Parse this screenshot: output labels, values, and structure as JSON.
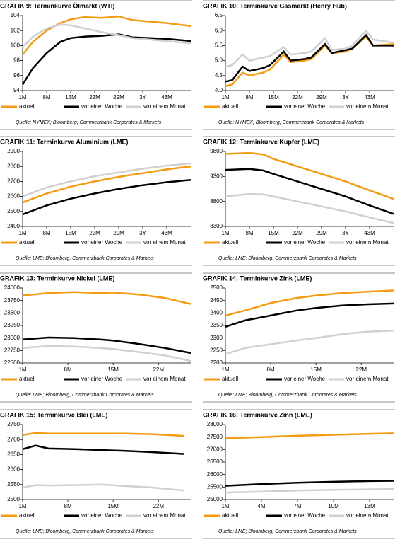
{
  "chart_data": [
    {
      "type": "line",
      "title": "GRAFIK 9: Terminkurve Ölmarkt (WTI)",
      "source": "Quelle: NYMEX; Bloomberg, Commerzbank Corporates & Markets",
      "x": [
        1,
        4,
        8,
        12,
        15,
        19,
        24,
        29,
        33,
        38,
        43,
        50
      ],
      "xlim": [
        1,
        50
      ],
      "xticks": [
        {
          "value": 1,
          "label": "1M"
        },
        {
          "value": 8,
          "label": "8M"
        },
        {
          "value": 15,
          "label": "15M"
        },
        {
          "value": 22,
          "label": "22M"
        },
        {
          "value": 29,
          "label": "29M"
        },
        {
          "value": 36,
          "label": "3Y"
        },
        {
          "value": 43,
          "label": "43M"
        }
      ],
      "ylim": [
        94,
        104
      ],
      "yticks": [
        94,
        96,
        98,
        100,
        102,
        104
      ],
      "series": [
        {
          "name": "aktuell",
          "color": "#f39c12",
          "values": [
            98.8,
            100.5,
            102,
            103,
            103.5,
            103.8,
            103.7,
            103.9,
            103.4,
            103.2,
            103,
            102.6
          ]
        },
        {
          "name": "vor einer Woche",
          "color": "#000000",
          "values": [
            94.8,
            97,
            99,
            100.5,
            101,
            101.2,
            101.3,
            101.5,
            101.1,
            101,
            100.9,
            100.6
          ]
        },
        {
          "name": "vor einem Monat",
          "color": "#d0d0d0",
          "values": [
            99.8,
            101.2,
            102.3,
            102.8,
            102.7,
            102.3,
            101.8,
            101.4,
            101,
            100.8,
            100.6,
            100.3
          ]
        }
      ]
    },
    {
      "type": "line",
      "title": "GRAFIK 10: Terminkurve Gasmarkt (Henry Hub)",
      "source": "Quelle: NYMEX; Bloomberg, Commerzbank Corporates & Markets",
      "x": [
        1,
        3,
        6,
        8,
        10,
        12,
        14,
        18,
        20,
        24,
        26,
        30,
        32,
        36,
        38,
        42,
        44,
        50
      ],
      "xlim": [
        1,
        50
      ],
      "xticks": [
        {
          "value": 1,
          "label": "1M"
        },
        {
          "value": 8,
          "label": "8M"
        },
        {
          "value": 15,
          "label": "15M"
        },
        {
          "value": 22,
          "label": "22M"
        },
        {
          "value": 29,
          "label": "29M"
        },
        {
          "value": 36,
          "label": "3Y"
        },
        {
          "value": 43,
          "label": "43M"
        }
      ],
      "ylim": [
        4,
        6.5
      ],
      "yticks": [
        {
          "value": 4,
          "label": "4.0"
        },
        4.5,
        {
          "value": 5,
          "label": "5.0"
        },
        5.5,
        {
          "value": 6,
          "label": "6.0"
        },
        6.5
      ],
      "series": [
        {
          "name": "aktuell",
          "color": "#f39c12",
          "values": [
            4.15,
            4.2,
            4.6,
            4.5,
            4.55,
            4.6,
            4.7,
            5.2,
            4.95,
            5.0,
            5.05,
            5.5,
            5.25,
            5.3,
            5.4,
            5.8,
            5.5,
            5.55
          ]
        },
        {
          "name": "vor einer Woche",
          "color": "#000000",
          "values": [
            4.3,
            4.35,
            4.8,
            4.65,
            4.7,
            4.75,
            4.85,
            5.3,
            5.0,
            5.05,
            5.1,
            5.55,
            5.25,
            5.35,
            5.4,
            5.85,
            5.5,
            5.5
          ]
        },
        {
          "name": "vor einem Monat",
          "color": "#d0d0d0",
          "values": [
            4.8,
            4.85,
            5.2,
            5.0,
            5.05,
            5.1,
            5.15,
            5.45,
            5.2,
            5.25,
            5.3,
            5.75,
            5.35,
            5.4,
            5.5,
            6.0,
            5.7,
            5.6
          ]
        }
      ]
    },
    {
      "type": "line",
      "title": "GRAFIK 11: Terminkurve Aluminium (LME)",
      "source": "Quelle: LME; Bloomberg, Commerzbank Corporates & Markets",
      "x": [
        1,
        8,
        15,
        22,
        29,
        36,
        43,
        50
      ],
      "xlim": [
        1,
        50
      ],
      "xticks": [
        {
          "value": 1,
          "label": "1M"
        },
        {
          "value": 8,
          "label": "8M"
        },
        {
          "value": 15,
          "label": "15M"
        },
        {
          "value": 22,
          "label": "22M"
        },
        {
          "value": 29,
          "label": "29M"
        },
        {
          "value": 36,
          "label": "3Y"
        },
        {
          "value": 43,
          "label": "43M"
        }
      ],
      "ylim": [
        2400,
        2900
      ],
      "yticks": [
        2400,
        2500,
        2600,
        2700,
        2800,
        2900
      ],
      "series": [
        {
          "name": "aktuell",
          "color": "#f39c12",
          "values": [
            2560,
            2620,
            2665,
            2700,
            2730,
            2755,
            2780,
            2800
          ]
        },
        {
          "name": "vor einer Woche",
          "color": "#000000",
          "values": [
            2480,
            2540,
            2585,
            2620,
            2650,
            2675,
            2695,
            2710
          ]
        },
        {
          "name": "vor einem Monat",
          "color": "#d0d0d0",
          "values": [
            2600,
            2660,
            2700,
            2735,
            2760,
            2785,
            2805,
            2820
          ]
        }
      ]
    },
    {
      "type": "line",
      "title": "GRAFIK 12: Terminkurve Kupfer (LME)",
      "source": "Quelle: LME; Bloomberg, Commerzbank Corporates & Markets",
      "x": [
        1,
        8,
        12,
        15,
        22,
        29,
        36,
        43,
        50
      ],
      "xlim": [
        1,
        50
      ],
      "xticks": [
        {
          "value": 1,
          "label": "1M"
        },
        {
          "value": 8,
          "label": "8M"
        },
        {
          "value": 15,
          "label": "15M"
        },
        {
          "value": 22,
          "label": "22M"
        },
        {
          "value": 29,
          "label": "29M"
        },
        {
          "value": 36,
          "label": "3Y"
        },
        {
          "value": 43,
          "label": "43M"
        }
      ],
      "ylim": [
        8300,
        9800
      ],
      "yticks": [
        8300,
        8800,
        9300,
        9800
      ],
      "series": [
        {
          "name": "aktuell",
          "color": "#f39c12",
          "values": [
            9750,
            9770,
            9740,
            9650,
            9500,
            9350,
            9200,
            9020,
            8850
          ]
        },
        {
          "name": "vor einer Woche",
          "color": "#000000",
          "values": [
            9430,
            9450,
            9420,
            9350,
            9200,
            9050,
            8900,
            8720,
            8550
          ]
        },
        {
          "name": "vor einem Monat",
          "color": "#d0d0d0",
          "values": [
            8900,
            8950,
            8940,
            8900,
            8800,
            8700,
            8600,
            8480,
            8370
          ]
        }
      ]
    },
    {
      "type": "line",
      "title": "GRAFIK 13: Terminkurve Nickel (LME)",
      "source": "Quelle: LME; Bloomberg, Commerzbank Corporates & Markets",
      "x": [
        1,
        5,
        9,
        13,
        15,
        19,
        23,
        27
      ],
      "xlim": [
        1,
        27
      ],
      "xticks": [
        {
          "value": 1,
          "label": "1M"
        },
        {
          "value": 8,
          "label": "8M"
        },
        {
          "value": 15,
          "label": "15M"
        },
        {
          "value": 22,
          "label": "22M"
        }
      ],
      "ylim": [
        22500,
        24000
      ],
      "yticks": [
        22500,
        22750,
        23000,
        23250,
        23500,
        23750,
        24000
      ],
      "series": [
        {
          "name": "aktuell",
          "color": "#f39c12",
          "values": [
            23850,
            23900,
            23920,
            23900,
            23910,
            23870,
            23800,
            23680
          ]
        },
        {
          "name": "vor einer Woche",
          "color": "#000000",
          "values": [
            22970,
            23010,
            23000,
            22970,
            22950,
            22880,
            22800,
            22700
          ]
        },
        {
          "name": "vor einem Monat",
          "color": "#d0d0d0",
          "values": [
            22800,
            22840,
            22830,
            22800,
            22780,
            22720,
            22650,
            22540
          ]
        }
      ]
    },
    {
      "type": "line",
      "title": "GRAFIK 14: Terminkurve Zink (LME)",
      "source": "Quelle: LME; Bloomberg, Commerzbank Corporates & Markets",
      "x": [
        1,
        4,
        8,
        12,
        15,
        19,
        23,
        27
      ],
      "xlim": [
        1,
        27
      ],
      "xticks": [
        {
          "value": 1,
          "label": "1M"
        },
        {
          "value": 8,
          "label": "8M"
        },
        {
          "value": 15,
          "label": "15M"
        },
        {
          "value": 22,
          "label": "22M"
        }
      ],
      "ylim": [
        2200,
        2500
      ],
      "yticks": [
        2200,
        2250,
        2300,
        2350,
        2400,
        2450,
        2500
      ],
      "series": [
        {
          "name": "aktuell",
          "color": "#f39c12",
          "values": [
            2390,
            2410,
            2440,
            2460,
            2470,
            2480,
            2485,
            2490
          ]
        },
        {
          "name": "vor einer Woche",
          "color": "#000000",
          "values": [
            2345,
            2370,
            2390,
            2410,
            2420,
            2430,
            2435,
            2438
          ]
        },
        {
          "name": "vor einem Monat",
          "color": "#d0d0d0",
          "values": [
            2235,
            2260,
            2275,
            2290,
            2300,
            2315,
            2325,
            2330
          ]
        }
      ]
    },
    {
      "type": "line",
      "title": "GRAFIK 15: Terminkurve Blei (LME)",
      "source": "Quelle: LME; Bloomberg, Commerzbank Corporates & Markets",
      "x": [
        1,
        3,
        5,
        9,
        13,
        17,
        21,
        26
      ],
      "xlim": [
        1,
        27
      ],
      "xticks": [
        {
          "value": 1,
          "label": "1M"
        },
        {
          "value": 8,
          "label": "8M"
        },
        {
          "value": 15,
          "label": "15M"
        },
        {
          "value": 22,
          "label": "22M"
        }
      ],
      "ylim": [
        2500,
        2750
      ],
      "yticks": [
        2500,
        2550,
        2600,
        2650,
        2700,
        2750
      ],
      "series": [
        {
          "name": "aktuell",
          "color": "#f39c12",
          "values": [
            2715,
            2722,
            2720,
            2720,
            2720,
            2720,
            2718,
            2712
          ]
        },
        {
          "name": "vor einer Woche",
          "color": "#000000",
          "values": [
            2668,
            2680,
            2670,
            2668,
            2665,
            2662,
            2658,
            2652
          ]
        },
        {
          "name": "vor einem Monat",
          "color": "#d0d0d0",
          "values": [
            2540,
            2548,
            2547,
            2548,
            2550,
            2545,
            2540,
            2530
          ]
        }
      ]
    },
    {
      "type": "line",
      "title": "GRAFIK 16: Terminkurve Zinn (LME)",
      "source": "Quelle: LME; Bloomberg, Commerzbank Corporates & Markets",
      "x": [
        1,
        4,
        7,
        10,
        13,
        15
      ],
      "xlim": [
        1,
        15
      ],
      "xticks": [
        {
          "value": 1,
          "label": "1M"
        },
        {
          "value": 4,
          "label": "4M"
        },
        {
          "value": 7,
          "label": "7M"
        },
        {
          "value": 10,
          "label": "10M"
        },
        {
          "value": 13,
          "label": "13M"
        }
      ],
      "ylim": [
        25000,
        28000
      ],
      "yticks": [
        25000,
        25500,
        26000,
        26500,
        27000,
        27500,
        28000
      ],
      "series": [
        {
          "name": "aktuell",
          "color": "#f39c12",
          "values": [
            27450,
            27500,
            27550,
            27590,
            27630,
            27650
          ]
        },
        {
          "name": "vor einer Woche",
          "color": "#000000",
          "values": [
            25550,
            25620,
            25670,
            25710,
            25740,
            25750
          ]
        },
        {
          "name": "vor einem Monat",
          "color": "#d0d0d0",
          "values": [
            25280,
            25320,
            25360,
            25390,
            25410,
            25420
          ]
        }
      ]
    }
  ]
}
